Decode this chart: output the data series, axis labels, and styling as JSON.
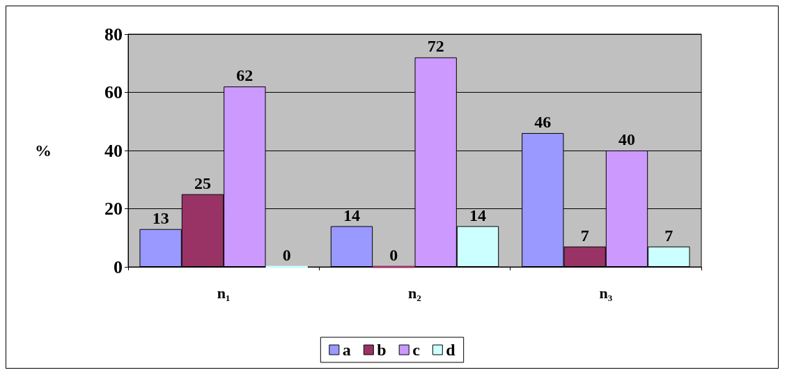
{
  "chart_data": {
    "type": "bar",
    "ylabel": "%",
    "categories": [
      "n₁",
      "n₂",
      "n₃"
    ],
    "series": [
      {
        "name": "a",
        "color": "#9999ff",
        "values": [
          13,
          14,
          46
        ]
      },
      {
        "name": "b",
        "color": "#993366",
        "values": [
          25,
          0,
          7
        ]
      },
      {
        "name": "c",
        "color": "#cc99ff",
        "values": [
          62,
          72,
          40
        ]
      },
      {
        "name": "d",
        "color": "#ccffff",
        "values": [
          0,
          14,
          7
        ]
      }
    ],
    "ylim": [
      0,
      80
    ],
    "yticks": [
      0,
      20,
      40,
      60,
      80
    ],
    "grid": "y",
    "legend": "bottom",
    "data_labels": true
  }
}
